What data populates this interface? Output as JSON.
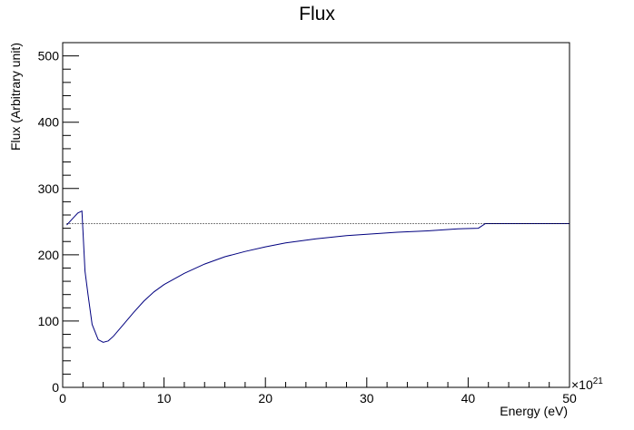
{
  "chart_data": {
    "type": "line",
    "title": "Flux",
    "xlabel": "Energy (eV)",
    "ylabel": "Flux (Arbitrary unit)",
    "x_exponent_label": "×10",
    "x_exponent_power": "21",
    "xlim": [
      0,
      50
    ],
    "ylim": [
      0,
      520
    ],
    "x_ticks": [
      0,
      10,
      20,
      30,
      40,
      50
    ],
    "y_ticks": [
      0,
      100,
      200,
      300,
      400,
      500
    ],
    "grid": false,
    "legend": "none",
    "series": [
      {
        "color": "#00007f",
        "style": "solid",
        "x": [
          0.4,
          1.0,
          1.5,
          1.9,
          2.2,
          2.5,
          2.9,
          3.5,
          4.0,
          4.5,
          5.0,
          6.0,
          7.0,
          8.0,
          9.0,
          10.0,
          12.0,
          14.0,
          16.0,
          18.0,
          20.0,
          22.0,
          25.0,
          28.0,
          30.0,
          33.0,
          36.0,
          39.0,
          41.0,
          41.7,
          45.0,
          50.0
        ],
        "y": [
          245,
          255,
          263,
          266,
          175,
          140,
          95,
          72,
          68,
          70,
          77,
          95,
          113,
          130,
          144,
          155,
          172,
          186,
          197,
          205,
          212,
          218,
          224,
          229,
          231,
          234,
          236,
          239,
          240,
          247,
          247,
          247
        ]
      },
      {
        "color": "#000000",
        "style": "dotted",
        "x": [
          0.4,
          50.0
        ],
        "y": [
          247,
          247
        ]
      }
    ]
  }
}
